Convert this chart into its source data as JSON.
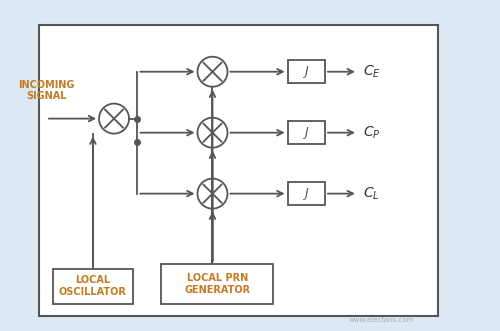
{
  "bg_outer": "#dce9f5",
  "bg_inner": "#ffffff",
  "border_outer": "#5a9fd4",
  "border_inner": "#555555",
  "line_color": "#555555",
  "text_color_label": "#c47a20",
  "text_color_out": "#333333",
  "incoming_text": "INCOMING\nSIGNAL",
  "local_osc_text": "LOCAL\nOSCILLATOR",
  "local_prn_text": "LOCAL PRN\nGENERATOR",
  "output_labels": [
    "C_E",
    "C_P",
    "C_L"
  ],
  "integrator_label": "J",
  "fig_width": 5.0,
  "fig_height": 3.31
}
